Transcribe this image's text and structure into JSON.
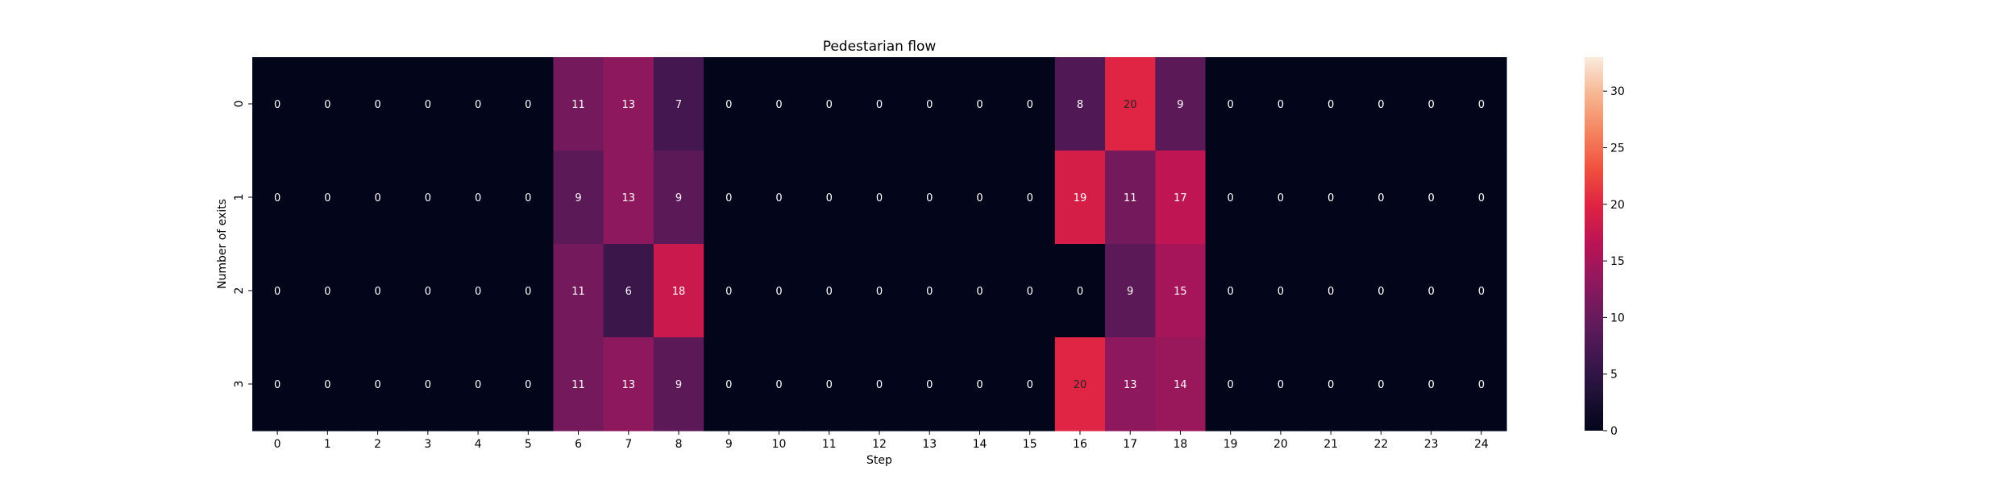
{
  "chart_data": {
    "type": "heatmap",
    "title": "Pedestarian flow",
    "xlabel": "Step",
    "ylabel": "Number of exits",
    "x": [
      "0",
      "1",
      "2",
      "3",
      "4",
      "5",
      "6",
      "7",
      "8",
      "9",
      "10",
      "11",
      "12",
      "13",
      "14",
      "15",
      "16",
      "17",
      "18",
      "19",
      "20",
      "21",
      "22",
      "23",
      "24"
    ],
    "y": [
      "0",
      "1",
      "2",
      "3"
    ],
    "values": [
      [
        0,
        0,
        0,
        0,
        0,
        0,
        11,
        13,
        7,
        0,
        0,
        0,
        0,
        0,
        0,
        0,
        8,
        20,
        9,
        0,
        0,
        0,
        0,
        0,
        0
      ],
      [
        0,
        0,
        0,
        0,
        0,
        0,
        9,
        13,
        9,
        0,
        0,
        0,
        0,
        0,
        0,
        0,
        19,
        11,
        17,
        0,
        0,
        0,
        0,
        0,
        0
      ],
      [
        0,
        0,
        0,
        0,
        0,
        0,
        11,
        6,
        18,
        0,
        0,
        0,
        0,
        0,
        0,
        0,
        0,
        9,
        15,
        0,
        0,
        0,
        0,
        0,
        0
      ],
      [
        0,
        0,
        0,
        0,
        0,
        0,
        11,
        13,
        9,
        0,
        0,
        0,
        0,
        0,
        0,
        0,
        20,
        13,
        14,
        0,
        0,
        0,
        0,
        0,
        0
      ]
    ],
    "colorbar": {
      "min": 0,
      "max": 33,
      "ticks": [
        0,
        5,
        10,
        15,
        20,
        25,
        30
      ]
    },
    "colormap": "rocket",
    "cell_labels": true
  }
}
